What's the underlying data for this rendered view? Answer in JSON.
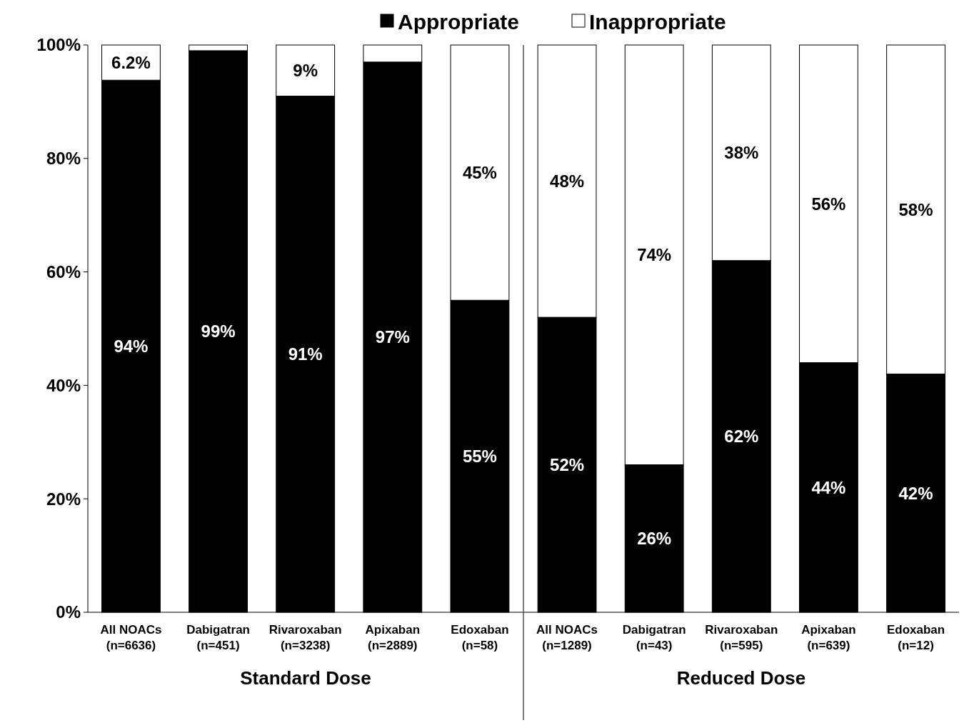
{
  "chart_data": {
    "type": "bar",
    "stacked": true,
    "categories": [
      "All NOACs\n(n=6636)",
      "Dabigatran\n(n=451)",
      "Rivaroxaban\n(n=3238)",
      "Apixaban\n(n=2889)",
      "Edoxaban\n(n=58)",
      "All NOACs\n(n=1289)",
      "Dabigatran\n(n=43)",
      "Rivaroxaban\n(n=595)",
      "Apixaban\n(n=639)",
      "Edoxaban\n(n=12)"
    ],
    "series": [
      {
        "name": "Appropriate",
        "color": "#000000",
        "values": [
          93.8,
          99,
          91,
          97,
          55,
          52,
          26,
          62,
          44,
          42
        ],
        "value_labels": [
          "94%",
          "99%",
          "91%",
          "97%",
          "55%",
          "52%",
          "26%",
          "62%",
          "44%",
          "42%"
        ]
      },
      {
        "name": "Inappropriate",
        "color": "#ffffff",
        "values": [
          6.2,
          1,
          9,
          3,
          45,
          48,
          74,
          38,
          56,
          58
        ],
        "value_labels": [
          "6.2%",
          null,
          "9%",
          null,
          "45%",
          "48%",
          "74%",
          "38%",
          "56%",
          "58%"
        ]
      }
    ],
    "ylim": [
      0,
      100
    ],
    "yticks": [
      {
        "value": 0,
        "label": "0%"
      },
      {
        "value": 20,
        "label": "20%"
      },
      {
        "value": 40,
        "label": "40%"
      },
      {
        "value": 60,
        "label": "60%"
      },
      {
        "value": 80,
        "label": "80%"
      },
      {
        "value": 100,
        "label": "100%"
      }
    ],
    "annotations": [
      "Standard Dose",
      "Reduced Dose"
    ],
    "legend": "top",
    "grid": false
  }
}
